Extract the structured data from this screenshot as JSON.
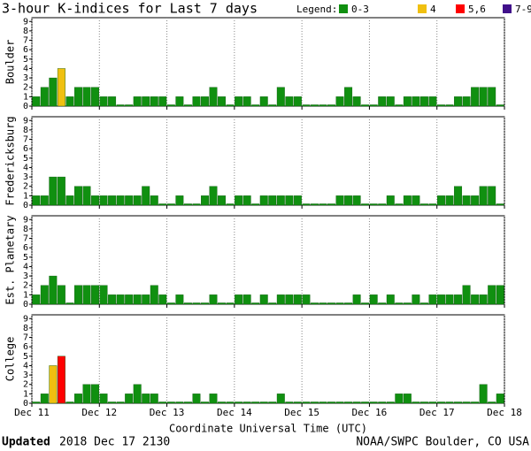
{
  "title": "3-hour K-indices for Last 7 days",
  "legend_title": "Legend:",
  "legend": [
    {
      "label": "0-3",
      "color": "#109010"
    },
    {
      "label": "4",
      "color": "#f0c010"
    },
    {
      "label": "5,6",
      "color": "#ff0000"
    },
    {
      "label": "7-9",
      "color": "#40108a"
    }
  ],
  "xlim": [
    0,
    7
  ],
  "xticks": [
    {
      "value": 0,
      "label": "Dec 11"
    },
    {
      "value": 1,
      "label": "Dec 12"
    },
    {
      "value": 2,
      "label": "Dec 13"
    },
    {
      "value": 3,
      "label": "Dec 14"
    },
    {
      "value": 4,
      "label": "Dec 15"
    },
    {
      "value": 5,
      "label": "Dec 16"
    },
    {
      "value": 6,
      "label": "Dec 17"
    },
    {
      "value": 7,
      "label": "Dec 18"
    }
  ],
  "xlabel": "Coordinate Universal Time (UTC)",
  "footer": {
    "bold": "Updated",
    "date": "2018 Dec 17 2130",
    "right": "NOAA/SWPC Boulder, CO USA"
  },
  "chart_data": [
    {
      "type": "bar",
      "ylabel": "Boulder",
      "ylim": [
        0,
        9.4
      ],
      "yticks": [
        0,
        1,
        2,
        3,
        4,
        5,
        6,
        7,
        8,
        9
      ],
      "values": [
        1,
        2,
        3,
        4,
        1,
        2,
        2,
        2,
        1,
        1,
        0,
        0,
        1,
        1,
        1,
        1,
        0,
        1,
        0,
        1,
        1,
        2,
        1,
        0,
        1,
        1,
        0,
        1,
        0,
        2,
        1,
        1,
        0,
        0,
        0,
        0,
        1,
        2,
        1,
        0,
        0,
        1,
        1,
        0,
        1,
        1,
        1,
        1,
        0,
        0,
        1,
        1,
        2,
        2,
        2,
        0
      ]
    },
    {
      "type": "bar",
      "ylabel": "Fredericksburg",
      "ylim": [
        0,
        9.4
      ],
      "yticks": [
        0,
        1,
        2,
        3,
        4,
        5,
        6,
        7,
        8,
        9
      ],
      "values": [
        1,
        1,
        3,
        3,
        1,
        2,
        2,
        1,
        1,
        1,
        1,
        1,
        1,
        2,
        1,
        0,
        0,
        1,
        0,
        0,
        1,
        2,
        1,
        0,
        1,
        1,
        0,
        1,
        1,
        1,
        1,
        1,
        0,
        0,
        0,
        0,
        1,
        1,
        1,
        0,
        0,
        0,
        1,
        0,
        1,
        1,
        0,
        0,
        1,
        1,
        2,
        1,
        1,
        2,
        2,
        0
      ]
    },
    {
      "type": "bar",
      "ylabel": "Est. Planetary",
      "ylim": [
        0,
        9.4
      ],
      "yticks": [
        0,
        1,
        2,
        3,
        4,
        5,
        6,
        7,
        8,
        9
      ],
      "values": [
        1,
        2,
        3,
        2,
        0,
        2,
        2,
        2,
        2,
        1,
        1,
        1,
        1,
        1,
        2,
        1,
        0,
        1,
        0,
        0,
        0,
        1,
        0,
        0,
        1,
        1,
        0,
        1,
        0,
        1,
        1,
        1,
        1,
        0,
        0,
        0,
        0,
        0,
        1,
        0,
        1,
        0,
        1,
        0,
        0,
        1,
        0,
        1,
        1,
        1,
        1,
        2,
        1,
        1,
        2,
        2
      ]
    },
    {
      "type": "bar",
      "ylabel": "College",
      "ylim": [
        0,
        9.4
      ],
      "yticks": [
        0,
        1,
        2,
        3,
        4,
        5,
        6,
        7,
        8,
        9
      ],
      "values": [
        0,
        1,
        4,
        5,
        0,
        1,
        2,
        2,
        1,
        0,
        0,
        1,
        2,
        1,
        1,
        0,
        0,
        0,
        0,
        1,
        0,
        1,
        0,
        0,
        0,
        0,
        0,
        0,
        0,
        1,
        0,
        0,
        0,
        0,
        0,
        0,
        0,
        0,
        0,
        0,
        0,
        0,
        0,
        1,
        1,
        0,
        0,
        0,
        0,
        0,
        0,
        0,
        0,
        2,
        0,
        1
      ]
    }
  ]
}
